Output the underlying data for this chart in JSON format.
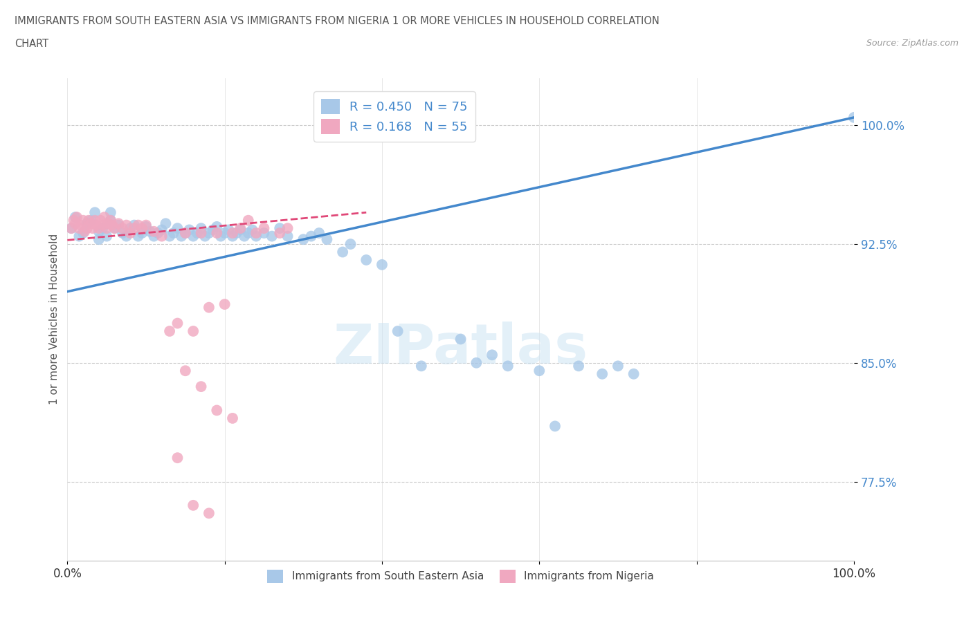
{
  "title_line1": "IMMIGRANTS FROM SOUTH EASTERN ASIA VS IMMIGRANTS FROM NIGERIA 1 OR MORE VEHICLES IN HOUSEHOLD CORRELATION",
  "title_line2": "CHART",
  "source_text": "Source: ZipAtlas.com",
  "ylabel": "1 or more Vehicles in Household",
  "xlim": [
    0.0,
    1.0
  ],
  "ylim": [
    0.725,
    1.03
  ],
  "yticks": [
    0.775,
    0.85,
    0.925,
    1.0
  ],
  "ytick_labels": [
    "77.5%",
    "85.0%",
    "92.5%",
    "100.0%"
  ],
  "xticks": [
    0.0,
    0.2,
    0.4,
    0.6,
    0.8,
    1.0
  ],
  "xtick_labels": [
    "0.0%",
    "",
    "",
    "",
    "",
    "100.0%"
  ],
  "legend_r1": "R = 0.450",
  "legend_n1": "N = 75",
  "legend_r2": "R = 0.168",
  "legend_n2": "N = 55",
  "color_sea": "#a8c8e8",
  "color_nigeria": "#f0a8c0",
  "trendline_sea_color": "#4488cc",
  "trendline_nigeria_color": "#e04878",
  "background_color": "#ffffff",
  "watermark": "ZIPatlas",
  "sea_trendline_x0": 0.0,
  "sea_trendline_y0": 0.895,
  "sea_trendline_x1": 1.0,
  "sea_trendline_y1": 1.005,
  "nig_trendline_x0": 0.0,
  "nig_trendline_y0": 0.9275,
  "nig_trendline_x1": 0.38,
  "nig_trendline_y1": 0.945,
  "sea_x": [
    0.005,
    0.01,
    0.015,
    0.02,
    0.025,
    0.03,
    0.035,
    0.04,
    0.04,
    0.045,
    0.05,
    0.055,
    0.055,
    0.06,
    0.065,
    0.07,
    0.075,
    0.08,
    0.085,
    0.09,
    0.095,
    0.1,
    0.105,
    0.11,
    0.115,
    0.12,
    0.125,
    0.13,
    0.135,
    0.14,
    0.145,
    0.15,
    0.155,
    0.16,
    0.165,
    0.17,
    0.175,
    0.18,
    0.185,
    0.19,
    0.195,
    0.2,
    0.205,
    0.21,
    0.215,
    0.22,
    0.225,
    0.23,
    0.235,
    0.24,
    0.25,
    0.26,
    0.27,
    0.28,
    0.3,
    0.31,
    0.32,
    0.33,
    0.35,
    0.36,
    0.38,
    0.4,
    0.42,
    0.45,
    0.5,
    0.52,
    0.54,
    0.56,
    0.6,
    0.62,
    0.65,
    0.68,
    0.7,
    0.72,
    1.0
  ],
  "sea_y": [
    0.935,
    0.942,
    0.93,
    0.932,
    0.938,
    0.94,
    0.945,
    0.933,
    0.928,
    0.935,
    0.93,
    0.94,
    0.945,
    0.935,
    0.937,
    0.932,
    0.93,
    0.935,
    0.937,
    0.93,
    0.932,
    0.936,
    0.933,
    0.93,
    0.932,
    0.934,
    0.938,
    0.93,
    0.932,
    0.935,
    0.93,
    0.932,
    0.934,
    0.93,
    0.932,
    0.935,
    0.93,
    0.932,
    0.934,
    0.936,
    0.93,
    0.932,
    0.934,
    0.93,
    0.932,
    0.934,
    0.93,
    0.932,
    0.934,
    0.93,
    0.932,
    0.93,
    0.935,
    0.93,
    0.928,
    0.93,
    0.932,
    0.928,
    0.92,
    0.925,
    0.915,
    0.912,
    0.87,
    0.848,
    0.865,
    0.85,
    0.855,
    0.848,
    0.845,
    0.81,
    0.848,
    0.843,
    0.848,
    0.843,
    1.005
  ],
  "nigeria_x": [
    0.005,
    0.008,
    0.01,
    0.012,
    0.015,
    0.017,
    0.02,
    0.022,
    0.025,
    0.027,
    0.03,
    0.032,
    0.035,
    0.037,
    0.04,
    0.042,
    0.045,
    0.047,
    0.05,
    0.052,
    0.055,
    0.057,
    0.06,
    0.065,
    0.07,
    0.075,
    0.08,
    0.085,
    0.09,
    0.095,
    0.1,
    0.11,
    0.12,
    0.13,
    0.14,
    0.15,
    0.16,
    0.17,
    0.18,
    0.19,
    0.2,
    0.21,
    0.22,
    0.23,
    0.24,
    0.25,
    0.27,
    0.28,
    0.15,
    0.17,
    0.19,
    0.21,
    0.14,
    0.16,
    0.18
  ],
  "nigeria_y": [
    0.935,
    0.94,
    0.938,
    0.942,
    0.935,
    0.937,
    0.94,
    0.933,
    0.935,
    0.94,
    0.938,
    0.935,
    0.94,
    0.937,
    0.935,
    0.94,
    0.937,
    0.942,
    0.935,
    0.938,
    0.94,
    0.937,
    0.935,
    0.938,
    0.935,
    0.937,
    0.932,
    0.935,
    0.937,
    0.935,
    0.937,
    0.933,
    0.93,
    0.87,
    0.875,
    0.932,
    0.87,
    0.932,
    0.885,
    0.932,
    0.887,
    0.932,
    0.935,
    0.94,
    0.932,
    0.935,
    0.932,
    0.935,
    0.845,
    0.835,
    0.82,
    0.815,
    0.79,
    0.76,
    0.755
  ]
}
